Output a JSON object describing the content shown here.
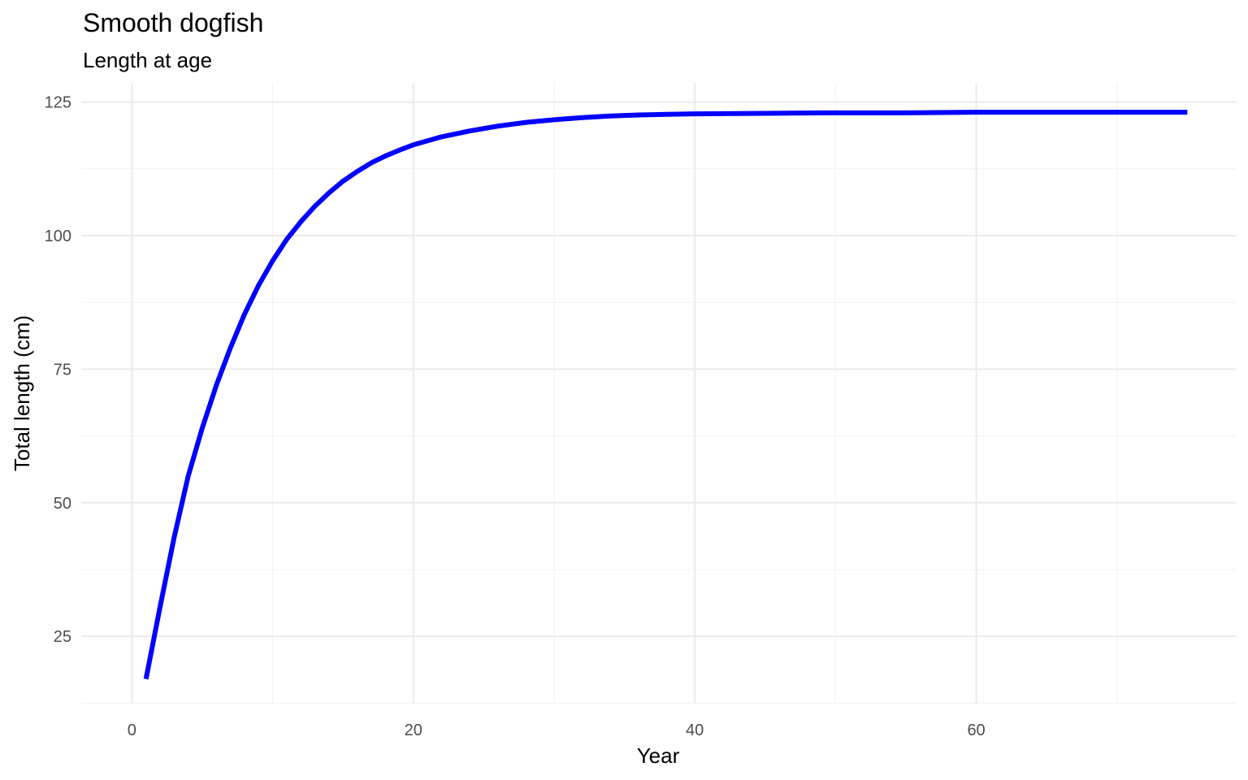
{
  "chart_data": {
    "type": "line",
    "title": "Smooth dogfish",
    "subtitle": "Length at age",
    "xlabel": "Year",
    "ylabel": "Total length (cm)",
    "xlim": [
      -3.6,
      78.5
    ],
    "ylim": [
      12.4,
      128.6
    ],
    "x_ticks": [
      0,
      20,
      40,
      60
    ],
    "x_tick_labels": [
      "0",
      "20",
      "40",
      "60"
    ],
    "y_ticks": [
      25,
      50,
      75,
      100,
      125
    ],
    "y_tick_labels": [
      "25",
      "50",
      "75",
      "100",
      "125"
    ],
    "grid": true,
    "line_color": "#0000ff",
    "series": [
      {
        "x": [
          1,
          2,
          3,
          4,
          5,
          6,
          7,
          8,
          9,
          10,
          11,
          12,
          13,
          14,
          15,
          16,
          17,
          18,
          19,
          20,
          22,
          24,
          26,
          28,
          30,
          32,
          34,
          36,
          38,
          40,
          45,
          50,
          55,
          60,
          65,
          70,
          75
        ],
        "values": [
          17,
          30.5,
          43.5,
          55,
          64,
          72,
          79,
          85.3,
          90.7,
          95.3,
          99.3,
          102.6,
          105.5,
          108,
          110.2,
          112,
          113.6,
          114.9,
          116,
          117,
          118.5,
          119.6,
          120.5,
          121.2,
          121.7,
          122.1,
          122.4,
          122.6,
          122.7,
          122.8,
          122.9,
          123,
          123,
          123.1,
          123.1,
          123.1,
          123.1
        ]
      }
    ]
  }
}
